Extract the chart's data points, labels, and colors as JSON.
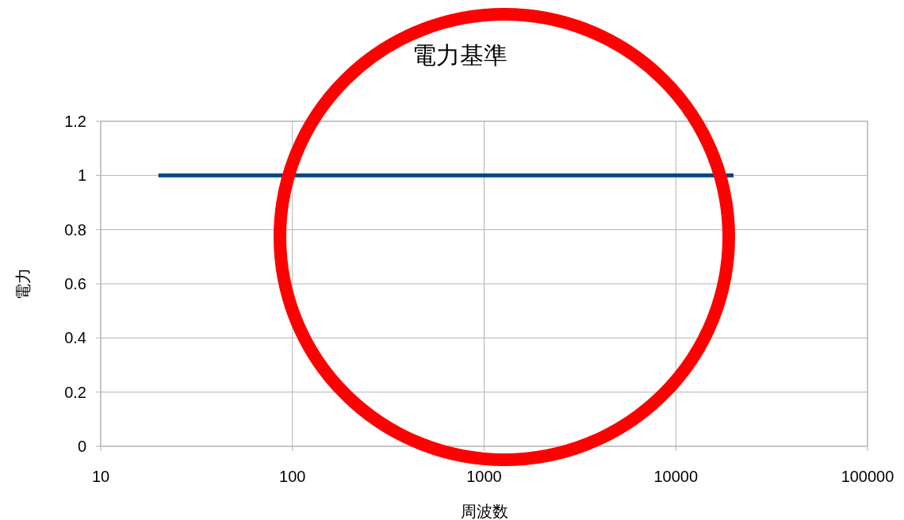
{
  "chart_data": {
    "type": "line",
    "title": "電力基準",
    "xlabel": "周波数",
    "ylabel": "電力",
    "x": [
      20,
      20000
    ],
    "series": [
      {
        "color": "#004586",
        "values": [
          1,
          1
        ]
      }
    ],
    "xlim": [
      10,
      100000
    ],
    "xticks": [
      10,
      100,
      1000,
      10000,
      100000
    ],
    "ylim": [
      0,
      1.2
    ],
    "yticks": [
      0,
      0.2,
      0.4,
      0.6,
      0.8,
      1,
      1.2
    ],
    "log": "x",
    "grid": true,
    "marker": "none",
    "line_style": "solid"
  }
}
